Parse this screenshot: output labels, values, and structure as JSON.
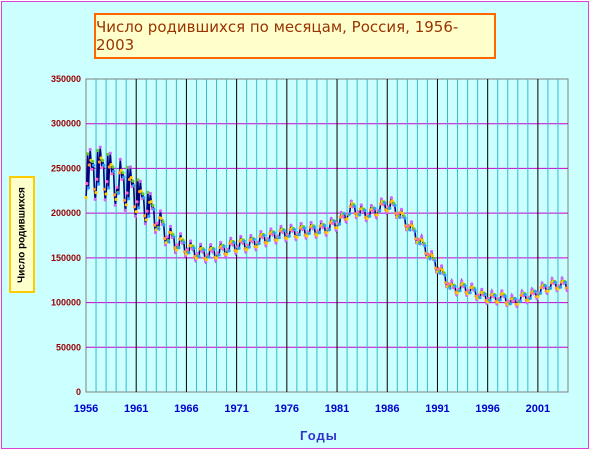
{
  "chart_data": {
    "type": "line",
    "title": "Число родившихся по месяцам, Россия, 1956-2003",
    "xlabel": "Годы",
    "ylabel": "Число родившихся",
    "xlim": [
      1956,
      2004
    ],
    "ylim": [
      0,
      350000
    ],
    "y_ticks": [
      "0",
      "50000",
      "100000",
      "150000",
      "200000",
      "250000",
      "300000",
      "350000"
    ],
    "x_ticks": [
      "1956",
      "1961",
      "1966",
      "1971",
      "1976",
      "1981",
      "1986",
      "1991",
      "1996",
      "2001"
    ],
    "grid": true,
    "legend": "none",
    "annual_monthly_mean": [
      [
        1956,
        235000
      ],
      [
        1957,
        242000
      ],
      [
        1958,
        245000
      ],
      [
        1959,
        238000
      ],
      [
        1960,
        232000
      ],
      [
        1961,
        225000
      ],
      [
        1962,
        212000
      ],
      [
        1963,
        202000
      ],
      [
        1964,
        185000
      ],
      [
        1965,
        170000
      ],
      [
        1966,
        165000
      ],
      [
        1967,
        158000
      ],
      [
        1968,
        155000
      ],
      [
        1969,
        155000
      ],
      [
        1970,
        158000
      ],
      [
        1971,
        163000
      ],
      [
        1972,
        165000
      ],
      [
        1973,
        166000
      ],
      [
        1974,
        171000
      ],
      [
        1975,
        174000
      ],
      [
        1976,
        177000
      ],
      [
        1977,
        178000
      ],
      [
        1978,
        180000
      ],
      [
        1979,
        181000
      ],
      [
        1980,
        182000
      ],
      [
        1981,
        186000
      ],
      [
        1982,
        193000
      ],
      [
        1983,
        206000
      ],
      [
        1984,
        200000
      ],
      [
        1985,
        200000
      ],
      [
        1986,
        208000
      ],
      [
        1987,
        209000
      ],
      [
        1988,
        195000
      ],
      [
        1989,
        181000
      ],
      [
        1990,
        165000
      ],
      [
        1991,
        148000
      ],
      [
        1992,
        132000
      ],
      [
        1993,
        115000
      ],
      [
        1994,
        117000
      ],
      [
        1995,
        113000
      ],
      [
        1996,
        107000
      ],
      [
        1997,
        105000
      ],
      [
        1998,
        106000
      ],
      [
        1999,
        100000
      ],
      [
        2000,
        106000
      ],
      [
        2001,
        108000
      ],
      [
        2002,
        115000
      ],
      [
        2003,
        120000
      ]
    ],
    "seasonal_amplitude": [
      [
        1956,
        35000
      ],
      [
        1960,
        32000
      ],
      [
        1963,
        20000
      ],
      [
        1966,
        12000
      ],
      [
        1975,
        10000
      ],
      [
        1985,
        10000
      ],
      [
        1990,
        9000
      ],
      [
        2003,
        8000
      ]
    ],
    "colors": {
      "line": "#000080",
      "markers": [
        "#ffcc00",
        "#ff66cc",
        "#66cc33",
        "#3399ff",
        "#ff9933",
        "#cc66ff"
      ],
      "plot_background": "#ccffff",
      "grid_vertical_major": "#000000",
      "grid_vertical_minor": "#33bbcc",
      "grid_horizontal": "#cc00cc",
      "tick_labels_x": "#0000cc",
      "tick_labels_y": "#990000"
    }
  }
}
